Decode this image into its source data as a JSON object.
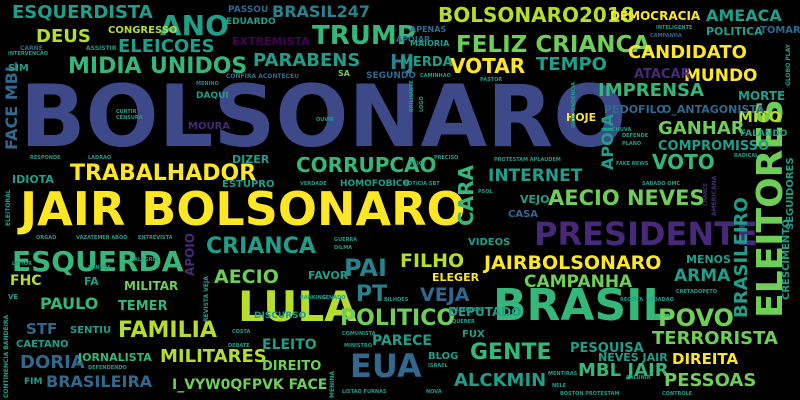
{
  "palette": {
    "background": "#000000",
    "yellow": "#FDE725",
    "lime": "#B5DE2B",
    "green": "#6ECE58",
    "sea": "#35B779",
    "teal": "#1F9E89",
    "cyan": "#26828E",
    "steel": "#31688E",
    "blue": "#3E4989",
    "indigo": "#482878",
    "purple": "#440154"
  },
  "words": [
    {
      "text": "BOLSONARO",
      "color": "blue"
    },
    {
      "text": "JAIR BOLSONARO",
      "color": "yellow"
    },
    {
      "text": "LULA",
      "color": "lime"
    },
    {
      "text": "BRASIL",
      "color": "sea"
    },
    {
      "text": "PRESIDENTE",
      "color": "indigo"
    },
    {
      "text": "ELEITORES",
      "color": "green"
    },
    {
      "text": "EUA",
      "color": "steel"
    },
    {
      "text": "ESQUERDA",
      "color": "sea"
    },
    {
      "text": "FELIZ CRIANCA",
      "color": "green"
    },
    {
      "text": "TRUMP",
      "color": "sea"
    },
    {
      "text": "BOLSONARO2018",
      "color": "lime"
    },
    {
      "text": "ESQUERDISTA",
      "color": "teal"
    },
    {
      "text": "ANO",
      "color": "teal"
    },
    {
      "text": "DEUS",
      "color": "lime"
    },
    {
      "text": "ELEICOES",
      "color": "teal"
    },
    {
      "text": "MIDIA",
      "color": "sea"
    },
    {
      "text": "UNIDOS",
      "color": "sea"
    },
    {
      "text": "PARABENS",
      "color": "teal"
    },
    {
      "text": "HJ",
      "color": "cyan"
    },
    {
      "text": "VOTAR",
      "color": "yellow"
    },
    {
      "text": "TEMPO",
      "color": "teal"
    },
    {
      "text": "CANDIDATO",
      "color": "yellow"
    },
    {
      "text": "MUNDO",
      "color": "yellow"
    },
    {
      "text": "BRASIL247",
      "color": "cyan"
    },
    {
      "text": "DEMOCRACIA",
      "color": "yellow"
    },
    {
      "text": "AMEACA",
      "color": "teal"
    },
    {
      "text": "POLITICA",
      "color": "teal"
    },
    {
      "text": "TOMAR",
      "color": "steel"
    },
    {
      "text": "IMPRENSA",
      "color": "sea"
    },
    {
      "text": "GANHAR",
      "color": "green"
    },
    {
      "text": "MITO",
      "color": "lime"
    },
    {
      "text": "MORTE",
      "color": "teal"
    },
    {
      "text": "COMPROMISSO",
      "color": "teal"
    },
    {
      "text": "VOTO",
      "color": "sea"
    },
    {
      "text": "CORRUPCAO",
      "color": "sea"
    },
    {
      "text": "TRABALHADOR",
      "color": "yellow"
    },
    {
      "text": "INTERNET",
      "color": "teal"
    },
    {
      "text": "AECIO NEVES",
      "color": "green"
    },
    {
      "text": "CARA",
      "color": "sea"
    },
    {
      "text": "CRIANCA",
      "color": "teal"
    },
    {
      "text": "AECIO",
      "color": "green"
    },
    {
      "text": "PAI",
      "color": "cyan"
    },
    {
      "text": "FILHO",
      "color": "lime"
    },
    {
      "text": "JAIRBOLSONARO",
      "color": "yellow"
    },
    {
      "text": "CAMPANHA",
      "color": "green"
    },
    {
      "text": "ARMA",
      "color": "teal"
    },
    {
      "text": "BRASILEIRO",
      "color": "teal"
    },
    {
      "text": "FAMILIA",
      "color": "lime"
    },
    {
      "text": "PT",
      "color": "cyan"
    },
    {
      "text": "VEJA",
      "color": "steel"
    },
    {
      "text": "POLITICO",
      "color": "green"
    },
    {
      "text": "POVO",
      "color": "green"
    },
    {
      "text": "TERRORISTA",
      "color": "green"
    },
    {
      "text": "GENTE",
      "color": "sea"
    },
    {
      "text": "MILITARES",
      "color": "lime"
    },
    {
      "text": "DORIA",
      "color": "steel"
    },
    {
      "text": "BRASILEIRA",
      "color": "steel"
    },
    {
      "text": "ALCKMIN",
      "color": "teal"
    },
    {
      "text": "MBL JAIR",
      "color": "sea"
    },
    {
      "text": "PESSOAS",
      "color": "green"
    },
    {
      "text": "DIREITA",
      "color": "yellow"
    },
    {
      "text": "I_VYW0QFPVK FACE",
      "color": "green"
    },
    {
      "text": "PAULO",
      "color": "sea"
    },
    {
      "text": "FHC",
      "color": "lime"
    },
    {
      "text": "STF",
      "color": "steel"
    },
    {
      "text": "TEMER",
      "color": "sea"
    },
    {
      "text": "ELEITO",
      "color": "teal"
    },
    {
      "text": "FACE MBL",
      "color": "steel"
    },
    {
      "text": "PARECE",
      "color": "teal"
    },
    {
      "text": "DIREITO",
      "color": "green"
    },
    {
      "text": "PESQUISA",
      "color": "teal"
    },
    {
      "text": "NEVES JAIR",
      "color": "teal"
    },
    {
      "text": "DEPUTADO",
      "color": "teal"
    },
    {
      "text": "JORNALISTA",
      "color": "sea"
    },
    {
      "text": "MILITAR",
      "color": "green"
    },
    {
      "text": "CRESCIMENTO",
      "color": "teal"
    },
    {
      "text": "MERDA",
      "color": "teal"
    },
    {
      "text": "ATACAR",
      "color": "indigo"
    },
    {
      "text": "PEDOFILO",
      "color": "steel"
    },
    {
      "text": "O_ANTAGONISTA",
      "color": "steel"
    },
    {
      "text": "APOIA",
      "color": "teal"
    },
    {
      "text": "MENOS",
      "color": "teal"
    },
    {
      "text": "ELEGER",
      "color": "yellow"
    },
    {
      "text": "FAVOR",
      "color": "teal"
    },
    {
      "text": "SEGUIDORES",
      "color": "teal"
    },
    {
      "text": "DIZER",
      "color": "teal"
    },
    {
      "text": "IDIOTA",
      "color": "teal"
    },
    {
      "text": "VEJO",
      "color": "teal"
    },
    {
      "text": "CASA",
      "color": "steel"
    },
    {
      "text": "VIDEOS",
      "color": "teal"
    },
    {
      "text": "HOJE",
      "color": "yellow"
    },
    {
      "text": "APOIO",
      "color": "indigo"
    },
    {
      "text": "CAETANO",
      "color": "teal"
    },
    {
      "text": "SENTIU",
      "color": "teal"
    },
    {
      "text": "BLOG",
      "color": "teal"
    },
    {
      "text": "FUX",
      "color": "teal"
    },
    {
      "text": "CONGRESSO",
      "color": "lime"
    },
    {
      "text": "EXTREMISTA",
      "color": "purple"
    },
    {
      "text": "SEGUNDO",
      "color": "steel"
    },
    {
      "text": "ESTUPRO",
      "color": "teal"
    },
    {
      "text": "FALANDO",
      "color": "teal"
    },
    {
      "text": "HOMOFOBICO",
      "color": "teal"
    },
    {
      "text": "DISCURSO",
      "color": "teal"
    },
    {
      "text": "FA",
      "color": "teal"
    },
    {
      "text": "FIM",
      "color": "teal"
    },
    {
      "text": "PASSOU",
      "color": "steel"
    },
    {
      "text": "EDUARDO",
      "color": "teal"
    },
    {
      "text": "APENAS",
      "color": "steel"
    },
    {
      "text": "APOIAR",
      "color": "steel"
    },
    {
      "text": "MAIORIA",
      "color": "teal"
    },
    {
      "text": "SIM",
      "color": "teal"
    },
    {
      "text": "MOURA",
      "color": "indigo"
    },
    {
      "text": "DAQUI",
      "color": "teal"
    }
  ],
  "tiny_words": [
    "CARNE",
    "ASSISTIR",
    "INTERVENCAO",
    "MENINO",
    "CONFIRA ACONTECEU",
    "SA",
    "CAMINHAO",
    "PASTOR",
    "INTELIGENTE",
    "CAMPANHA",
    "GLOBO PLAY",
    "CENSURA",
    "CURTIR",
    "OUVIR",
    "CHUVA",
    "RADICAL",
    "DEFENDE",
    "PLANO",
    "FAKE NEWS",
    "RESPONDE",
    "LADRAO",
    "PRECISO",
    "FEIO",
    "PROTESTAM APLAUDEM",
    "VERDADE",
    "NOTICIA SBT",
    "PSOL",
    "SABADO OMC",
    "ELEITORAL",
    "CHANCE",
    "AMERICANA",
    "ORGAO",
    "VAZATEMER ABOO",
    "ENTREVISTA",
    "GUERRA",
    "DILMA",
    "LEITOR",
    "ALEGRIA",
    "SANTOS",
    "CIDADAO",
    "RECEITA",
    "CRETADOPETO",
    "CONTINENCIA BANDEIRA",
    "VE",
    "REVISTA VEJA",
    "SENADO",
    "BILHOES",
    "RANKING",
    "FACEBOOK",
    "QUERER",
    "COSTA",
    "COMUNISTA",
    "CALUNIA",
    "DEFENDENDO",
    "DEBATE",
    "MINISTRO",
    "MENINA",
    "ISRAEL",
    "LISTAO FURNAS",
    "NOVA",
    "NELE",
    "MENTIRAS",
    "BOSTON PROTESTAM",
    "CONTROLE",
    "LOGO",
    "BRILHANTE",
    "INDEPENDENCIA"
  ]
}
